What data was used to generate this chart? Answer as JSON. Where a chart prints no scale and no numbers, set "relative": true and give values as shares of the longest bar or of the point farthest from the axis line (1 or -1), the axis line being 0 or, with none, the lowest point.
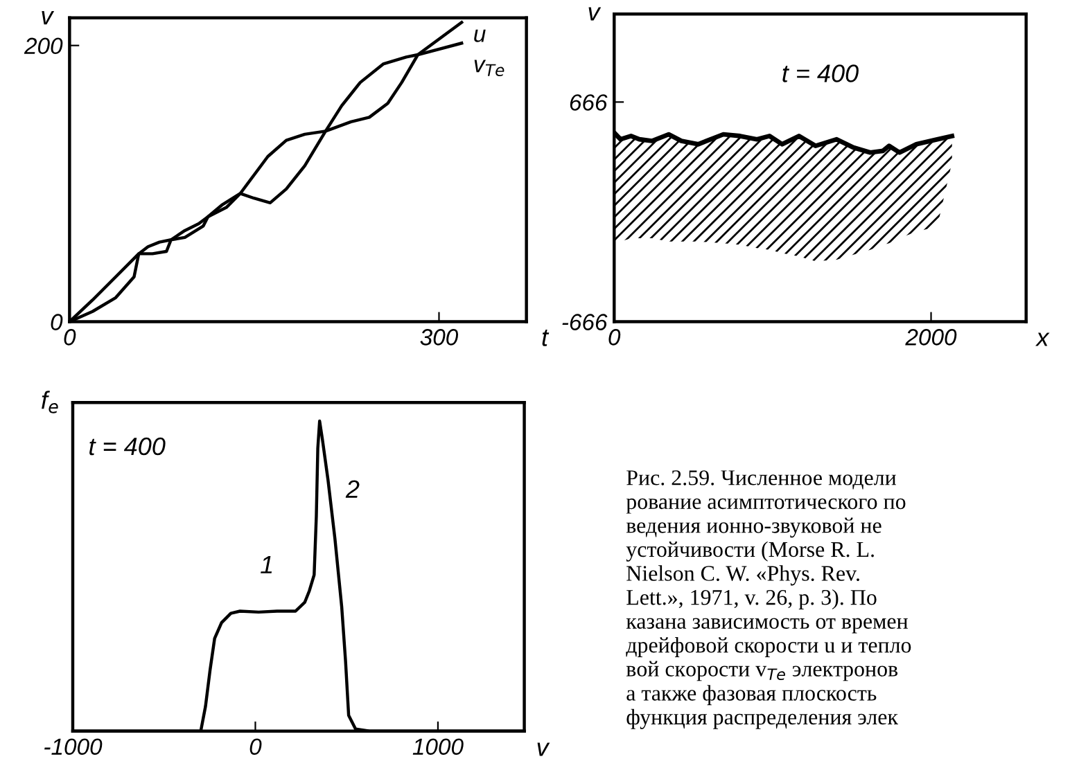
{
  "chart_data": [
    {
      "type": "line",
      "xlabel": "t",
      "ylabel": "v",
      "xlim": [
        0,
        371
      ],
      "ylim": [
        0,
        220
      ],
      "xticks": [
        0,
        300
      ],
      "yticks": [
        0,
        200
      ],
      "grid": false,
      "legend": false,
      "series": [
        {
          "name": "u",
          "color": "#000000",
          "x": [
            0,
            18.7,
            37.5,
            52.4,
            56.2,
            67.4,
            78.7,
            82.4,
            93.6,
            108.6,
            112.4,
            127.3,
            138.6,
            149.8,
            162.9,
            176,
            191,
            207.9,
            228.5,
            243.4,
            258.4,
            269.7,
            282.8,
            318.4
          ],
          "values": [
            0,
            7.4,
            17.4,
            32.5,
            49.2,
            49.2,
            50.9,
            59.3,
            61,
            69.3,
            76,
            82.7,
            92.8,
            89.4,
            86.1,
            96.1,
            112.9,
            138,
            144.7,
            148,
            158.1,
            173.2,
            193.3,
            216.7
          ]
        },
        {
          "name": "v$_{Te}$",
          "color": "#000000",
          "x": [
            0,
            18.7,
            37.5,
            56.2,
            63.7,
            73,
            82.4,
            93.6,
            104.9,
            112.4,
            123.6,
            138.6,
            149.8,
            161,
            176,
            191,
            207.9,
            221,
            236,
            254.7,
            273.4,
            282.8,
            318.4
          ],
          "values": [
            0,
            15.7,
            32.5,
            49.2,
            54.3,
            57.6,
            59.3,
            66,
            71,
            76,
            84.4,
            92.8,
            106.2,
            119.6,
            131.3,
            135.7,
            138,
            156.4,
            173.2,
            186.6,
            191.6,
            193.3,
            201.7
          ]
        }
      ]
    },
    {
      "type": "line",
      "xlabel": "x",
      "ylabel": "v",
      "xlim": [
        0,
        2600
      ],
      "ylim": [
        -666,
        1200
      ],
      "xticks": [
        0,
        2000
      ],
      "yticks": [
        -666,
        666
      ],
      "grid": false,
      "annotations": [
        "t = 400"
      ],
      "series": [
        {
          "color": "#000000",
          "x": [
            0,
            40,
            106,
            159,
            238,
            344,
            424,
            530,
            689,
            795,
            901,
            980,
            1060,
            1166,
            1271,
            1404,
            1510,
            1616,
            1696,
            1735,
            1801,
            1907,
            2039,
            2132
          ],
          "values": [
            480,
            440,
            460,
            440,
            430,
            470,
            430,
            410,
            470,
            460,
            440,
            460,
            410,
            460,
            400,
            440,
            390,
            360,
            370,
            400,
            360,
            410,
            440,
            460
          ],
          "upper": [
            480,
            440,
            460,
            440,
            430,
            470,
            430,
            410,
            470,
            460,
            440,
            460,
            410,
            460,
            400,
            440,
            390,
            360,
            370,
            400,
            360,
            410,
            440,
            460
          ],
          "lower": [
            -180,
            -180,
            -160,
            -160,
            -160,
            -180,
            -180,
            -180,
            -190,
            -200,
            -220,
            -230,
            -250,
            -270,
            -300,
            -290,
            -260,
            -230,
            -200,
            -190,
            -160,
            -120,
            -90,
            300
          ]
        }
      ]
    },
    {
      "type": "line",
      "relative": true,
      "xlabel": "v",
      "ylabel": "f$_{e}$",
      "xlim": [
        -1000,
        1473
      ],
      "xticks": [
        -1000,
        0,
        1000
      ],
      "grid": false,
      "annotations": [
        "t = 400",
        "1",
        "2"
      ],
      "series": [
        {
          "color": "#000000",
          "x": [
            -1000,
            -299,
            -273,
            -248,
            -223,
            -185,
            -134,
            -84,
            18,
            119,
            220,
            271,
            296,
            322,
            334,
            342,
            352,
            367,
            398,
            436,
            473,
            494,
            511,
            549,
            625,
            1470
          ],
          "values": [
            0,
            0,
            0.08,
            0.197,
            0.299,
            0.35,
            0.38,
            0.387,
            0.384,
            0.387,
            0.387,
            0.416,
            0.453,
            0.504,
            0.693,
            0.912,
            1,
            0.942,
            0.81,
            0.62,
            0.401,
            0.226,
            0.051,
            0.007,
            0,
            0
          ]
        }
      ]
    },
    {
      "type": "other",
      "annotations": [
        "Рис. 2.59. Численное модели\nрование асимптотического по\nведения ионно-звуковой не\nустойчивости (Morse R. L.\nNielson C. W. «Phys. Rev.\nLett.», 1971, v. 26, p. 3). По\nказана зависимость от времен\nдрейфовой скорости u и тепло\nвой скорости v$_{Te}$ электронов\nа также фазовая плоскость\nфункция распределения элек"
      ]
    }
  ]
}
